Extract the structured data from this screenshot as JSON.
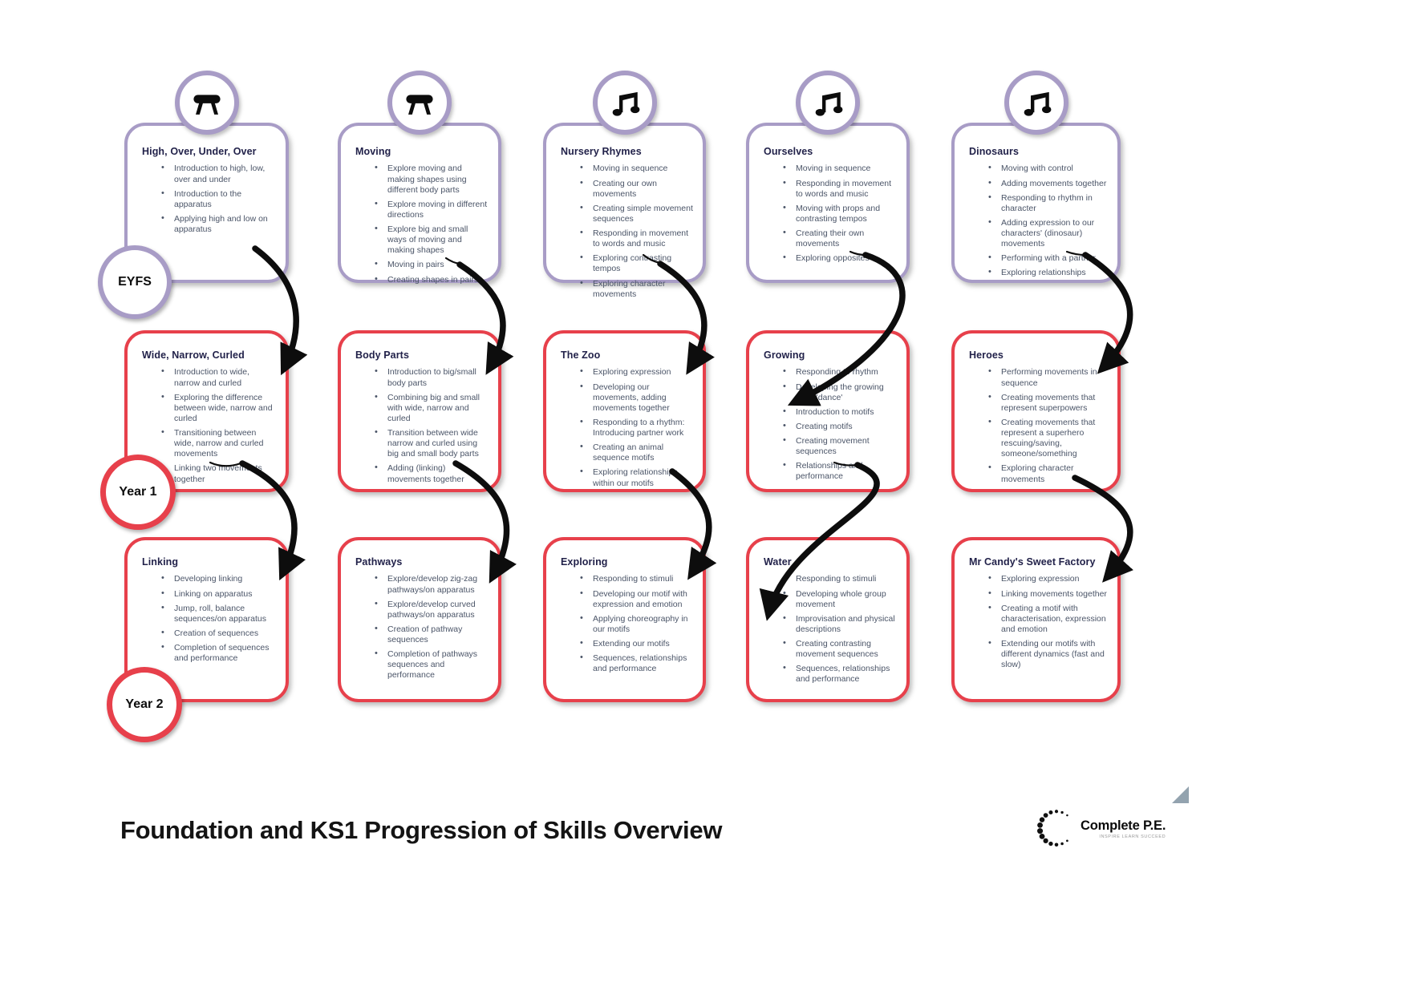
{
  "page": {
    "title": "Foundation and KS1 Progression of Skills Overview"
  },
  "rows": [
    {
      "stage": "EYFS",
      "cards": [
        {
          "title": "High, Over, Under, Over",
          "icon": "vaulting-horse",
          "bullets": [
            "Introduction to high, low, over and under",
            "Introduction to the apparatus",
            "Applying high and low on apparatus"
          ]
        },
        {
          "title": "Moving",
          "icon": "vaulting-horse",
          "bullets": [
            "Explore moving and making shapes using different body parts",
            "Explore moving in different directions",
            "Explore big and small ways of moving and making shapes",
            "Moving in pairs",
            "Creating shapes in pairs"
          ]
        },
        {
          "title": "Nursery Rhymes",
          "icon": "music-notes",
          "bullets": [
            "Moving in sequence",
            "Creating our own movements",
            "Creating simple movement sequences",
            "Responding in movement to words and music",
            "Exploring contrasting tempos",
            "Exploring character movements"
          ]
        },
        {
          "title": "Ourselves",
          "icon": "music-notes",
          "bullets": [
            "Moving in sequence",
            "Responding in movement to words and music",
            "Moving with props and contrasting tempos",
            "Creating their own movements",
            "Exploring opposites"
          ]
        },
        {
          "title": "Dinosaurs",
          "icon": "music-notes",
          "bullets": [
            "Moving with control",
            "Adding movements together",
            "Responding to rhythm in character",
            "Adding expression to our characters' (dinosaur) movements",
            "Performing with a partner",
            "Exploring relationships"
          ]
        }
      ]
    },
    {
      "stage": "Year 1",
      "cards": [
        {
          "title": "Wide, Narrow, Curled",
          "bullets": [
            "Introduction to wide, narrow and curled",
            "Exploring the difference between wide, narrow and curled",
            "Transitioning between wide, narrow and curled movements",
            "Linking two movements together"
          ]
        },
        {
          "title": "Body Parts",
          "bullets": [
            "Introduction to big/small body parts",
            "Combining big and small with wide, narrow and curled",
            "Transition between wide narrow and curled using big and small body parts",
            "Adding (linking) movements together"
          ]
        },
        {
          "title": "The Zoo",
          "bullets": [
            "Exploring expression",
            "Developing our movements, adding movements together",
            "Responding to a rhythm: Introducing partner work",
            "Creating an animal sequence motifs",
            "Exploring relationships within our motifs"
          ]
        },
        {
          "title": "Growing",
          "bullets": [
            "Responding to rhythm",
            "Developing the growing plant 'dance'",
            "Introduction to motifs",
            "Creating motifs",
            "Creating movement sequences",
            "Relationships and performance"
          ]
        },
        {
          "title": "Heroes",
          "bullets": [
            "Performing movements in sequence",
            "Creating movements that represent superpowers",
            "Creating movements that represent a superhero rescuing/saving, someone/something",
            "Exploring character movements"
          ]
        }
      ]
    },
    {
      "stage": "Year 2",
      "cards": [
        {
          "title": "Linking",
          "bullets": [
            "Developing linking",
            "Linking on apparatus",
            "Jump, roll, balance sequences/on apparatus",
            "Creation of sequences",
            "Completion of sequences and performance"
          ]
        },
        {
          "title": "Pathways",
          "bullets": [
            "Explore/develop zig-zag pathways/on apparatus",
            "Explore/develop curved pathways/on apparatus",
            "Creation of pathway sequences",
            "Completion of pathways sequences and performance"
          ]
        },
        {
          "title": "Exploring",
          "bullets": [
            "Responding to stimuli",
            "Developing our motif with expression and emotion",
            "Applying choreography in our motifs",
            "Extending our motifs",
            "Sequences, relationships and performance"
          ]
        },
        {
          "title": "Water",
          "bullets": [
            "Responding to stimuli",
            "Developing whole group movement",
            "Improvisation and physical descriptions",
            "Creating contrasting movement sequences",
            "Sequences, relationships and performance"
          ]
        },
        {
          "title": "Mr Candy's Sweet Factory",
          "bullets": [
            "Exploring expression",
            "Linking movements together",
            "Creating a motif with characterisation, expression and emotion",
            "Extending our motifs with different dynamics (fast and slow)"
          ]
        }
      ]
    }
  ],
  "badges": [
    {
      "label": "EYFS"
    },
    {
      "label": "Year 1"
    },
    {
      "label": "Year 2"
    }
  ],
  "logo": {
    "name": "Complete P.E.",
    "tagline": "INSPIRE LEARN SUCCEED"
  },
  "colors": {
    "purple": "#a89cc6",
    "red": "#e7404b",
    "bullet_text": "#4b5568",
    "title_text": "#22224a"
  }
}
